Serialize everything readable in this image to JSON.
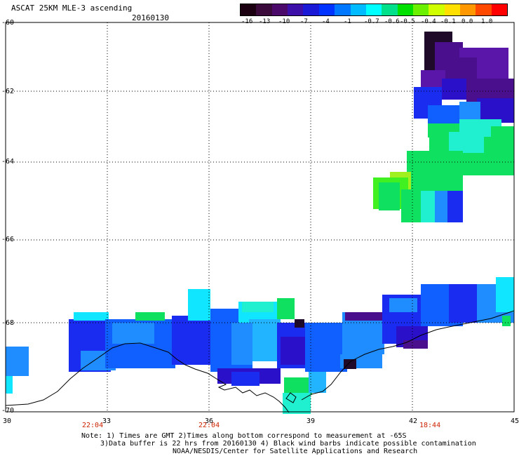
{
  "header": {
    "title": "ASCAT 25KM MLE-3 ascending",
    "date": "20160130"
  },
  "colorbar": {
    "labels": [
      "-16",
      "-13",
      "-10",
      "-7",
      "-4",
      "-1",
      "-0.7",
      "-0.6",
      "-0.5",
      "-0.4",
      "-0.1",
      "0.0",
      "1.0"
    ],
    "colors": [
      "#1a0010",
      "#3a0a3a",
      "#4b0a6a",
      "#3c0fa8",
      "#1a1ad6",
      "#0033ff",
      "#0077ff",
      "#00bbff",
      "#00ffff",
      "#00e08a",
      "#00e000",
      "#6af000",
      "#d0ff00",
      "#ffe000",
      "#ff9800",
      "#ff4800",
      "#ff0000"
    ]
  },
  "map": {
    "lat_labels": [
      "-60",
      "-62",
      "-64",
      "-66",
      "-68",
      "-70"
    ],
    "lon_labels": [
      "30",
      "33",
      "36",
      "39",
      "42",
      "45"
    ],
    "times": [
      "22:04",
      "22:04",
      "18:44"
    ],
    "cell_colors": {
      "deep": "#1f0a2a",
      "purple": "#4a0f8c",
      "violet": "#5a16a8",
      "indigo": "#2a10c8",
      "blue": "#1a2cf0",
      "medblue": "#1060ff",
      "skyblue": "#1f8cff",
      "lightblue": "#22b4ff",
      "cyan": "#10e6ff",
      "aqua": "#20f0d0",
      "green": "#10e060",
      "lime": "#40f020",
      "yellowgreen": "#a0f020"
    }
  },
  "footer": {
    "note_line1": "Note: 1) Times are GMT 2)Times along bottom correspond to measurement at -65S",
    "note_line2": "3)Data buffer is 22 hrs from 20160130 4) Black wind barbs indicate possible contamination",
    "credit": "NOAA/NESDIS/Center for Satellite Applications and Research"
  }
}
